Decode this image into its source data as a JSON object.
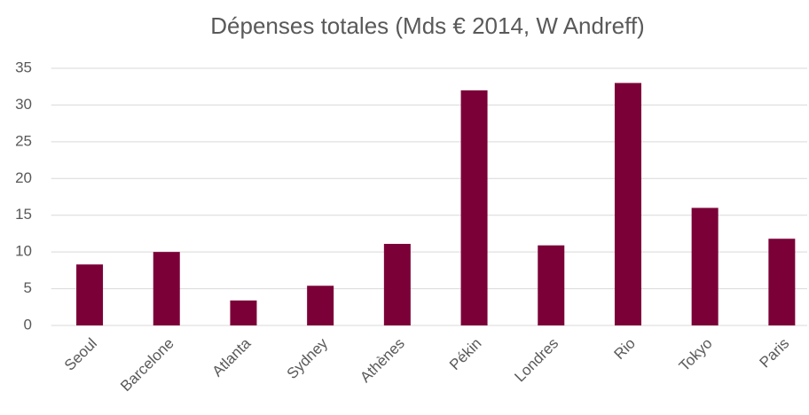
{
  "chart_data": {
    "type": "bar",
    "title": "Dépenses totales (Mds € 2014, W Andreff)",
    "categories": [
      "Seoul",
      "Barcelone",
      "Atlanta",
      "Sydney",
      "Athènes",
      "Pékin",
      "Londres",
      "Rio",
      "Tokyo",
      "Paris"
    ],
    "values": [
      8.3,
      10.0,
      3.4,
      5.4,
      11.1,
      32.0,
      10.9,
      33.0,
      16.0,
      11.8
    ],
    "color": "#7b0037",
    "ylim": [
      0,
      35
    ],
    "yticks": [
      0,
      5,
      10,
      15,
      20,
      25,
      30,
      35
    ],
    "grid": true
  }
}
